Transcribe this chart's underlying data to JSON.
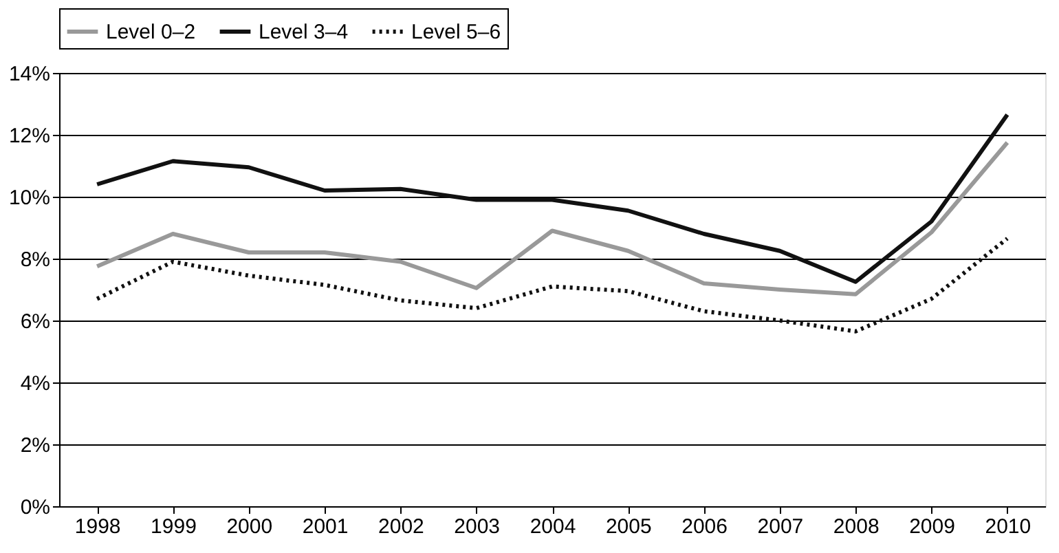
{
  "chart_data": {
    "type": "line",
    "categories": [
      "1998",
      "1999",
      "2000",
      "2001",
      "2002",
      "2003",
      "2004",
      "2005",
      "2006",
      "2007",
      "2008",
      "2009",
      "2010"
    ],
    "series": [
      {
        "name": "Level 0–2",
        "color": "#999999",
        "line_style": "solid",
        "values": [
          7.75,
          8.8,
          8.2,
          8.2,
          7.9,
          7.05,
          8.9,
          8.25,
          7.2,
          7.0,
          6.85,
          8.85,
          11.75
        ]
      },
      {
        "name": "Level 3–4",
        "color": "#111111",
        "line_style": "solid",
        "values": [
          10.4,
          11.15,
          10.95,
          10.2,
          10.25,
          9.9,
          9.9,
          9.55,
          8.8,
          8.25,
          7.25,
          9.2,
          12.65
        ]
      },
      {
        "name": "Level 5–6",
        "color": "#111111",
        "line_style": "dotted",
        "values": [
          6.7,
          7.9,
          7.45,
          7.15,
          6.65,
          6.4,
          7.1,
          6.95,
          6.3,
          6.0,
          5.65,
          6.7,
          8.65
        ]
      }
    ],
    "ylim": [
      0,
      14
    ],
    "yticks": [
      {
        "value": 0,
        "label": "0%"
      },
      {
        "value": 2,
        "label": "2%"
      },
      {
        "value": 4,
        "label": "4%"
      },
      {
        "value": 6,
        "label": "6%"
      },
      {
        "value": 8,
        "label": "8%"
      },
      {
        "value": 10,
        "label": "10%"
      },
      {
        "value": 12,
        "label": "12%"
      },
      {
        "value": 14,
        "label": "14%"
      }
    ],
    "grid": "y",
    "legend": "top",
    "marker": "none"
  }
}
